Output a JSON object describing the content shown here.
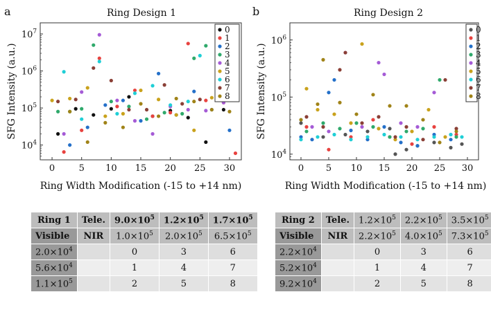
{
  "panel_letters": [
    "a",
    "b"
  ],
  "chart_data": [
    {
      "type": "scatter",
      "title": "Ring Design 1",
      "xlabel": "Ring Width Modification (-15 to +14 nm)",
      "ylabel": "SFG Intensity (a.u.)",
      "xlim": [
        -2,
        32
      ],
      "ylim_log10": [
        3.6,
        7.3
      ],
      "xticks": [
        0,
        5,
        10,
        15,
        20,
        25,
        30
      ],
      "yticks": [
        {
          "exp": 4,
          "label": "10",
          "sup": "4"
        },
        {
          "exp": 5,
          "label": "10",
          "sup": "5"
        },
        {
          "exp": 6,
          "label": "10",
          "sup": "6"
        },
        {
          "exp": 7,
          "label": "10",
          "sup": "7"
        }
      ],
      "legend": "top-right",
      "series": [
        {
          "name": "0",
          "color": "#111111",
          "x": [
            1,
            4,
            7,
            10,
            13,
            17,
            20,
            23,
            26,
            29
          ],
          "y": [
            20000,
            95000,
            65000,
            95000,
            200000,
            60000,
            85000,
            55000,
            12000,
            90000
          ]
        },
        {
          "name": "1",
          "color": "#e8423f",
          "x": [
            2,
            5,
            8,
            11,
            14,
            17,
            20,
            23,
            26,
            29,
            31
          ],
          "y": [
            6500,
            25000,
            2200000,
            110000,
            300000,
            60000,
            75000,
            5500000,
            160000,
            140000,
            6000
          ]
        },
        {
          "name": "2",
          "color": "#2470c9",
          "x": [
            3,
            6,
            9,
            12,
            15,
            18,
            21,
            24,
            27,
            30
          ],
          "y": [
            10000,
            30000,
            120000,
            160000,
            45000,
            850000,
            65000,
            280000,
            90000,
            25000
          ]
        },
        {
          "name": "3",
          "color": "#2fa96b",
          "x": [
            1,
            3,
            5,
            7,
            10,
            13,
            16,
            19,
            22,
            24,
            26,
            28
          ],
          "y": [
            80000,
            80000,
            95000,
            5000000,
            150000,
            110000,
            50000,
            75000,
            70000,
            2200000,
            4800000,
            190000
          ]
        },
        {
          "name": "4",
          "color": "#a55bd6",
          "x": [
            2,
            5,
            8,
            11,
            14,
            17,
            20,
            23,
            26,
            29
          ],
          "y": [
            20000,
            270000,
            9500000,
            160000,
            45000,
            20000,
            110000,
            90000,
            85000,
            140000
          ]
        },
        {
          "name": "5",
          "color": "#c9a21c",
          "x": [
            0,
            3,
            6,
            9,
            12,
            15,
            18,
            21,
            24,
            27,
            30
          ],
          "y": [
            160000,
            180000,
            350000,
            60000,
            70000,
            300000,
            170000,
            65000,
            25000,
            190000,
            220000
          ]
        },
        {
          "name": "6",
          "color": "#1fcfd6",
          "x": [
            2,
            5,
            8,
            11,
            14,
            17,
            20,
            23,
            25,
            28,
            30
          ],
          "y": [
            950000,
            50000,
            1800000,
            70000,
            250000,
            400000,
            120000,
            150000,
            2600000,
            800000,
            250000
          ]
        },
        {
          "name": "7",
          "color": "#8a3f36",
          "x": [
            1,
            4,
            7,
            10,
            13,
            16,
            19,
            22,
            25,
            28
          ],
          "y": [
            150000,
            170000,
            1200000,
            550000,
            90000,
            90000,
            420000,
            130000,
            170000,
            230000
          ]
        },
        {
          "name": "8",
          "color": "#a08318",
          "x": [
            3,
            6,
            9,
            12,
            15,
            18,
            21,
            24,
            27,
            30
          ],
          "y": [
            80000,
            12000,
            40000,
            30000,
            130000,
            60000,
            180000,
            150000,
            90000,
            80000
          ]
        }
      ]
    },
    {
      "type": "scatter",
      "title": "Ring Design 2",
      "xlabel": "Ring Width Modification (-15 to +14 nm)",
      "ylabel": "SFG Intensity (a.u.)",
      "xlim": [
        -2,
        32
      ],
      "ylim_log10": [
        3.9,
        6.3
      ],
      "xticks": [
        0,
        5,
        10,
        15,
        20,
        25,
        30
      ],
      "yticks": [
        {
          "exp": 4,
          "label": "10",
          "sup": "4"
        },
        {
          "exp": 5,
          "label": "10",
          "sup": "5"
        },
        {
          "exp": 6,
          "label": "10",
          "sup": "6"
        }
      ],
      "legend": "top-right",
      "series": [
        {
          "name": "0",
          "color": "#555555",
          "x": [
            0,
            4,
            8,
            12,
            16,
            17,
            19,
            21,
            24,
            27,
            29
          ],
          "y": [
            35000,
            20000,
            22000,
            25000,
            28000,
            10000,
            12000,
            14000,
            16000,
            13000,
            15000
          ]
        },
        {
          "name": "1",
          "color": "#e8423f",
          "x": [
            1,
            5,
            9,
            13,
            16,
            20,
            24,
            28
          ],
          "y": [
            30000,
            12000,
            20000,
            40000,
            20000,
            15000,
            30000,
            22000
          ]
        },
        {
          "name": "2",
          "color": "#2470c9",
          "x": [
            0,
            2,
            5,
            6,
            9,
            12,
            15,
            18,
            21,
            24,
            27
          ],
          "y": [
            20000,
            18000,
            120000,
            200000,
            26000,
            18000,
            30000,
            16000,
            14000,
            22000,
            18000
          ]
        },
        {
          "name": "3",
          "color": "#2fa96b",
          "x": [
            1,
            4,
            7,
            10,
            13,
            16,
            19,
            22,
            25,
            28
          ],
          "y": [
            25000,
            35000,
            28000,
            35000,
            30000,
            20000,
            25000,
            28000,
            200000,
            20000
          ]
        },
        {
          "name": "4",
          "color": "#a55bd6",
          "x": [
            2,
            5,
            8,
            11,
            14,
            15,
            18,
            21,
            24,
            27
          ],
          "y": [
            30000,
            25000,
            600000,
            30000,
            400000,
            250000,
            35000,
            30000,
            120000,
            22000
          ]
        },
        {
          "name": "5",
          "color": "#c9a21c",
          "x": [
            1,
            3,
            6,
            9,
            11,
            14,
            17,
            20,
            23,
            26
          ],
          "y": [
            140000,
            60000,
            50000,
            35000,
            850000,
            28000,
            18000,
            25000,
            60000,
            20000
          ]
        },
        {
          "name": "6",
          "color": "#1fcfd6",
          "x": [
            0,
            3,
            6,
            9,
            12,
            15,
            18,
            21,
            24,
            27,
            29
          ],
          "y": [
            18000,
            20000,
            22000,
            18000,
            20000,
            22000,
            20000,
            18000,
            20000,
            22000,
            20000
          ]
        },
        {
          "name": "7",
          "color": "#8a3f36",
          "x": [
            1,
            4,
            7,
            8,
            11,
            14,
            17,
            19,
            22,
            26,
            28
          ],
          "y": [
            45000,
            30000,
            300000,
            600000,
            35000,
            45000,
            20000,
            30000,
            18000,
            200000,
            28000
          ]
        },
        {
          "name": "8",
          "color": "#a08318",
          "x": [
            0,
            3,
            4,
            7,
            10,
            13,
            16,
            19,
            22,
            25,
            28
          ],
          "y": [
            40000,
            75000,
            450000,
            80000,
            50000,
            110000,
            70000,
            70000,
            40000,
            16000,
            25000
          ]
        }
      ]
    }
  ],
  "tables": [
    {
      "corner": "Ring 1",
      "top_label": "Tele.",
      "top_values": [
        "9.0×10",
        "1.2×10",
        "1.7×10"
      ],
      "top_sup": [
        "5",
        "5",
        "5"
      ],
      "left_label": "Visible",
      "mid_label": "NIR",
      "mid_values": [
        "1.0×10",
        "2.0×10",
        "6.5×10"
      ],
      "mid_sup": [
        "5",
        "5",
        "5"
      ],
      "rows": [
        {
          "label": "2.0×10",
          "sup": "4",
          "cells": [
            "0",
            "3",
            "6"
          ]
        },
        {
          "label": "5.6×10",
          "sup": "4",
          "cells": [
            "1",
            "4",
            "7"
          ]
        },
        {
          "label": "1.1×10",
          "sup": "5",
          "cells": [
            "2",
            "5",
            "8"
          ]
        }
      ]
    },
    {
      "corner": "Ring 2",
      "top_label": "Tele.",
      "top_values": [
        "1.2×10",
        "2.2×10",
        "3.5×10"
      ],
      "top_sup": [
        "5",
        "5",
        "5"
      ],
      "left_label": "Visible",
      "mid_label": "NIR",
      "mid_values": [
        "2.2×10",
        "4.0×10",
        "7.3×10"
      ],
      "mid_sup": [
        "5",
        "5",
        "5"
      ],
      "rows": [
        {
          "label": "2.2×10",
          "sup": "4",
          "cells": [
            "0",
            "3",
            "6"
          ]
        },
        {
          "label": "5.2×10",
          "sup": "4",
          "cells": [
            "1",
            "4",
            "7"
          ]
        },
        {
          "label": "9.2×10",
          "sup": "4",
          "cells": [
            "2",
            "5",
            "8"
          ]
        }
      ]
    }
  ]
}
